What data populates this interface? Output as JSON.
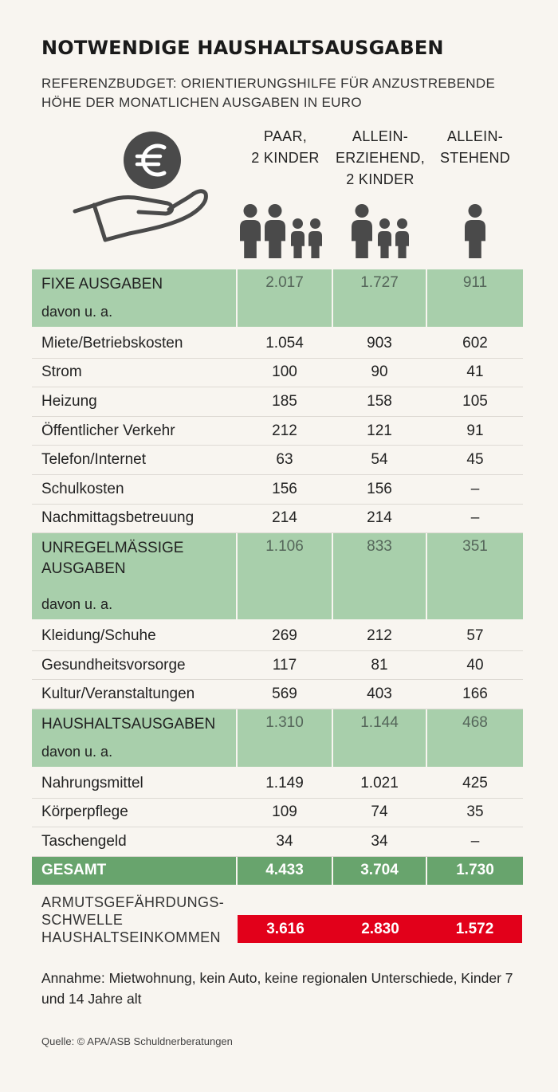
{
  "title": "NOTWENDIGE HAUSHALTSAUSGABEN",
  "subtitle": "REFERENZBUDGET: ORIENTIERUNGSHILFE FÜR ANZUSTREBENDE HÖHE DER MONATLICHEN AUSGABEN IN EURO",
  "icons": {
    "illustration": "hand-with-euro-coin-icon",
    "people": "person-silhouette-icon"
  },
  "columns": [
    {
      "lines": [
        "PAAR,",
        "2 KINDER"
      ],
      "adults": 2,
      "children": 2
    },
    {
      "lines": [
        "ALLEIN-",
        "ERZIEHEND,",
        "2 KINDER"
      ],
      "adults": 1,
      "children": 2
    },
    {
      "lines": [
        "ALLEIN-",
        "STEHEND"
      ],
      "adults": 1,
      "children": 0
    }
  ],
  "colors": {
    "group_bg": "#a8cfab",
    "total_bg": "#68a46d",
    "poverty_bg": "#e2001a",
    "icon": "#4a4a4a"
  },
  "chart_data": {
    "type": "table",
    "title": "NOTWENDIGE HAUSHALTSAUSGABEN",
    "columns": [
      "PAAR, 2 KINDER",
      "ALLEIN-ERZIEHEND, 2 KINDER",
      "ALLEIN-STEHEND"
    ],
    "groups": [
      {
        "name": "FIXE AUSGABEN",
        "sub": "davon u. a.",
        "values": [
          "2.017",
          "1.727",
          "911"
        ],
        "items": [
          {
            "label": "Miete/Betriebskosten",
            "values": [
              "1.054",
              "903",
              "602"
            ]
          },
          {
            "label": "Strom",
            "values": [
              "100",
              "90",
              "41"
            ]
          },
          {
            "label": "Heizung",
            "values": [
              "185",
              "158",
              "105"
            ]
          },
          {
            "label": "Öffentlicher Verkehr",
            "values": [
              "212",
              "121",
              "91"
            ]
          },
          {
            "label": "Telefon/Internet",
            "values": [
              "63",
              "54",
              "45"
            ]
          },
          {
            "label": "Schulkosten",
            "values": [
              "156",
              "156",
              "–"
            ]
          },
          {
            "label": "Nachmittagsbetreuung",
            "values": [
              "214",
              "214",
              "–"
            ]
          }
        ]
      },
      {
        "name": "UNREGELMÄSSIGE AUSGABEN",
        "sub": "davon u. a.",
        "values": [
          "1.106",
          "833",
          "351"
        ],
        "items": [
          {
            "label": "Kleidung/Schuhe",
            "values": [
              "269",
              "212",
              "57"
            ]
          },
          {
            "label": "Gesundheitsvorsorge",
            "values": [
              "117",
              "81",
              "40"
            ]
          },
          {
            "label": "Kultur/Veranstaltungen",
            "values": [
              "569",
              "403",
              "166"
            ]
          }
        ]
      },
      {
        "name": "HAUSHALTSAUSGABEN",
        "sub": "davon u. a.",
        "values": [
          "1.310",
          "1.144",
          "468"
        ],
        "items": [
          {
            "label": "Nahrungsmittel",
            "values": [
              "1.149",
              "1.021",
              "425"
            ]
          },
          {
            "label": "Körperpflege",
            "values": [
              "109",
              "74",
              "35"
            ]
          },
          {
            "label": "Taschengeld",
            "values": [
              "34",
              "34",
              "–"
            ]
          }
        ]
      }
    ],
    "total": {
      "label": "GESAMT",
      "values": [
        "4.433",
        "3.704",
        "1.730"
      ]
    },
    "poverty": {
      "label_lines": [
        "ARMUTSGEFÄHRDUNGS-",
        "SCHWELLE",
        "HAUSHALTSEINKOMMEN"
      ],
      "values": [
        "3.616",
        "2.830",
        "1.572"
      ]
    }
  },
  "note": "Annahme: Mietwohnung, kein Auto, keine regionalen Unterschiede, Kinder 7 und 14 Jahre alt",
  "source": "Quelle: © APA/ASB Schuldnerberatungen"
}
